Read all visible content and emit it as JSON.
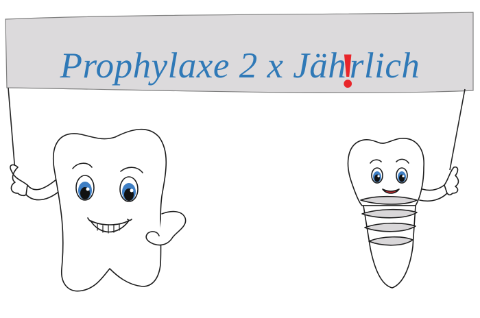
{
  "banner": {
    "text_before": "Prophylaxe 2 x Jäh",
    "text_after": "rlich",
    "mark": "!",
    "text_color": "#2f79b7",
    "mark_color": "#e8262b",
    "banner_fill": "#dcdadc"
  },
  "colors": {
    "outline": "#1c1c1c",
    "iris": "#3f7fc4",
    "mouth": "#e8262b"
  }
}
